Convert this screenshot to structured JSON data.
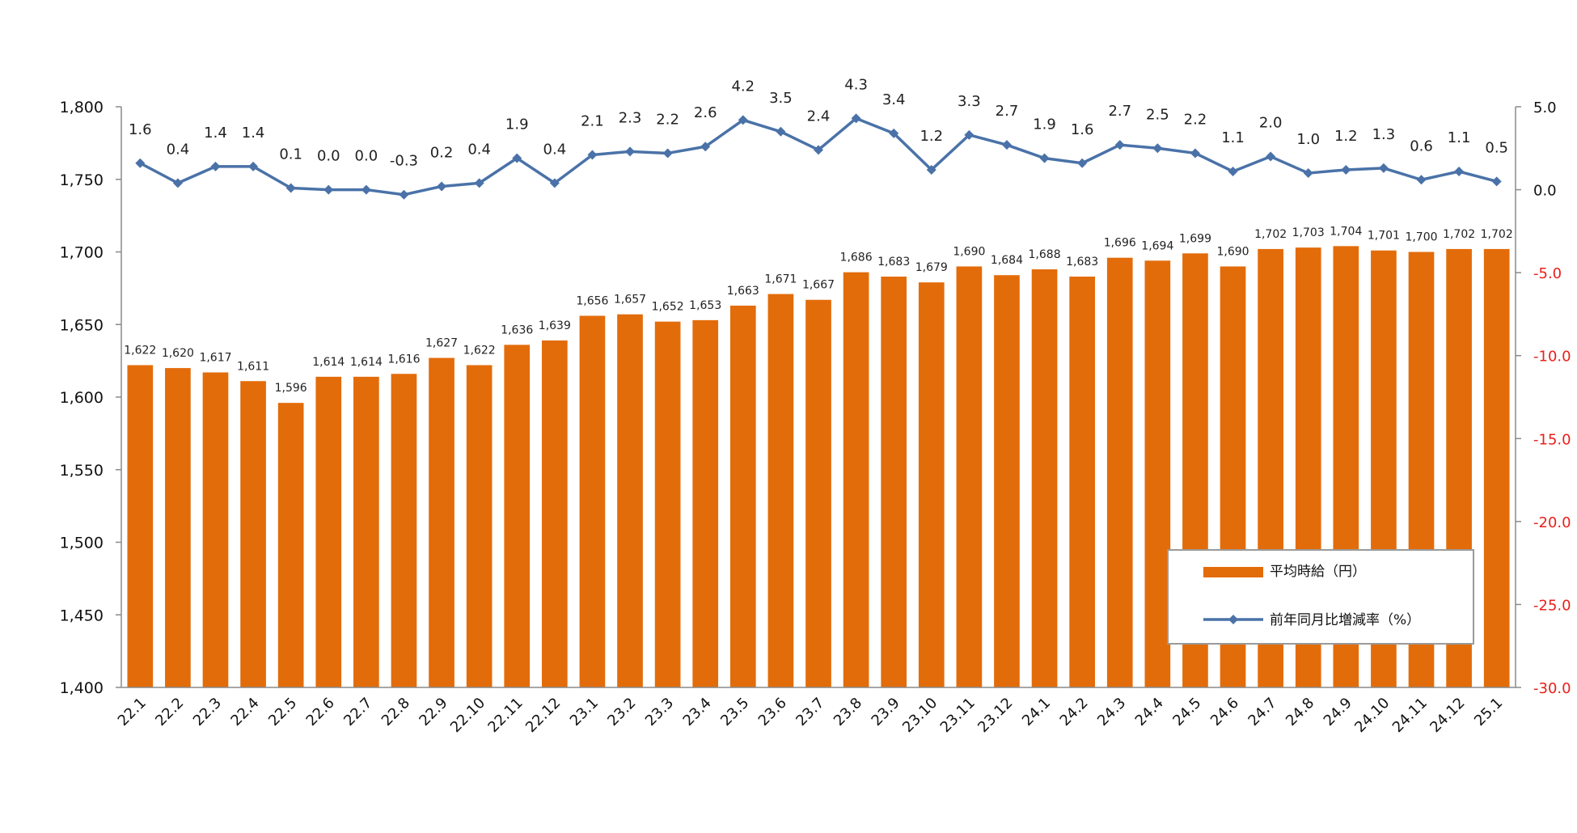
{
  "chart_data": {
    "type": "bar",
    "categories": [
      "22.1",
      "22.2",
      "22.3",
      "22.4",
      "22.5",
      "22.6",
      "22.7",
      "22.8",
      "22.9",
      "22.10",
      "22.11",
      "22.12",
      "23.1",
      "23.2",
      "23.3",
      "23.4",
      "23.5",
      "23.6",
      "23.7",
      "23.8",
      "23.9",
      "23.10",
      "23.11",
      "23.12",
      "24.1",
      "24.2",
      "24.3",
      "24.4",
      "24.5",
      "24.6",
      "24.7",
      "24.8",
      "24.9",
      "24.10",
      "24.11",
      "24.12",
      "25.1"
    ],
    "series": [
      {
        "name": "平均時給（円）",
        "kind": "bar",
        "axis": "left",
        "color": "#e36c0a",
        "values": [
          1622,
          1620,
          1617,
          1611,
          1596,
          1614,
          1614,
          1616,
          1627,
          1622,
          1636,
          1639,
          1656,
          1657,
          1652,
          1653,
          1663,
          1671,
          1667,
          1686,
          1683,
          1679,
          1690,
          1684,
          1688,
          1683,
          1696,
          1694,
          1699,
          1690,
          1702,
          1703,
          1704,
          1701,
          1700,
          1702,
          1702
        ],
        "labels": [
          "1,622",
          "1,620",
          "1,617",
          "1,611",
          "1,596",
          "1,614",
          "1,614",
          "1,616",
          "1,627",
          "1,622",
          "1,636",
          "1,639",
          "1,656",
          "1,657",
          "1,652",
          "1,653",
          "1,663",
          "1,671",
          "1,667",
          "1,686",
          "1,683",
          "1,679",
          "1,690",
          "1,684",
          "1,688",
          "1,683",
          "1,696",
          "1,694",
          "1,699",
          "1,690",
          "1,702",
          "1,703",
          "1,704",
          "1,701",
          "1,700",
          "1,702",
          "1,702"
        ]
      },
      {
        "name": "前年同月比増減率（%）",
        "kind": "line",
        "axis": "right",
        "color": "#4a72a8",
        "negative_label_color": "#e8201a",
        "values": [
          1.6,
          0.4,
          1.4,
          1.4,
          0.1,
          0.0,
          0.0,
          -0.3,
          0.2,
          0.4,
          1.9,
          0.4,
          2.1,
          2.3,
          2.2,
          2.6,
          4.2,
          3.5,
          2.4,
          4.3,
          3.4,
          1.2,
          3.3,
          2.7,
          1.9,
          1.6,
          2.7,
          2.5,
          2.2,
          1.1,
          2.0,
          1.0,
          1.2,
          1.3,
          0.6,
          1.1,
          0.5
        ],
        "labels": [
          "1.6",
          "0.4",
          "1.4",
          "1.4",
          "0.1",
          "0.0",
          "0.0",
          "-0.3",
          "0.2",
          "0.4",
          "1.9",
          "0.4",
          "2.1",
          "2.3",
          "2.2",
          "2.6",
          "4.2",
          "3.5",
          "2.4",
          "4.3",
          "3.4",
          "1.2",
          "3.3",
          "2.7",
          "1.9",
          "1.6",
          "2.7",
          "2.5",
          "2.2",
          "1.1",
          "2.0",
          "1.0",
          "1.2",
          "1.3",
          "0.6",
          "1.1",
          "0.5"
        ]
      }
    ],
    "y_left": {
      "min": 1400,
      "max": 1800,
      "ticks": [
        1400,
        1450,
        1500,
        1550,
        1600,
        1650,
        1700,
        1750,
        1800
      ],
      "tick_labels": [
        "1,400",
        "1,450",
        "1,500",
        "1,550",
        "1,600",
        "1,650",
        "1,700",
        "1,750",
        "1,800"
      ]
    },
    "y_right": {
      "min": -30,
      "max": 5,
      "ticks": [
        5,
        0,
        -5,
        -10,
        -15,
        -20,
        -25,
        -30
      ],
      "tick_labels": [
        "5.0",
        "0.0",
        "-5.0",
        "-10.0",
        "-15.0",
        "-20.0",
        "-25.0",
        "-30.0"
      ],
      "positive_color": "#111111",
      "negative_color": "#e8201a"
    },
    "legend": {
      "position": "bottom-right",
      "items": [
        "平均時給（円）",
        "前年同月比増減率（%）"
      ]
    },
    "grid": false,
    "title": "",
    "xlabel": "",
    "ylabel": ""
  }
}
